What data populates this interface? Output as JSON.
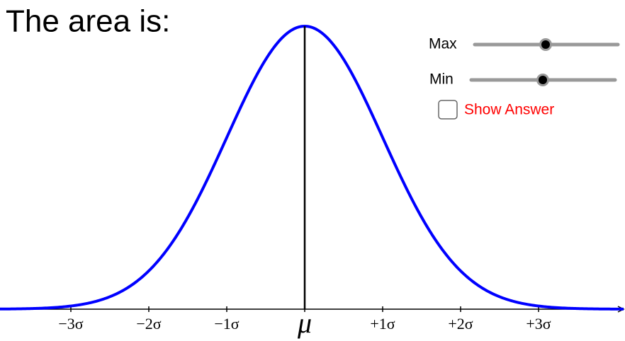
{
  "header": {
    "title": "The area is:"
  },
  "axis": {
    "labels": [
      "−3σ",
      "−2σ",
      "−1σ",
      "μ",
      "+1σ",
      "+2σ",
      "+3σ"
    ]
  },
  "sliders": [
    {
      "label": "Max"
    },
    {
      "label": "Min"
    }
  ],
  "checkbox": {
    "label": "Show Answer"
  }
}
